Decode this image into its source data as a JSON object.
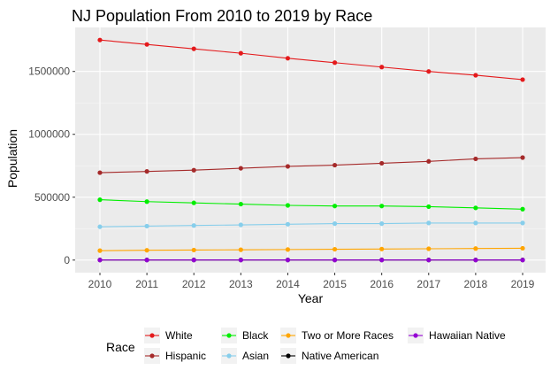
{
  "chart_data": {
    "type": "line",
    "title": "NJ Population From 2010 to 2019 by Race",
    "xlabel": "Year",
    "ylabel": "Population",
    "x": [
      2010,
      2011,
      2012,
      2013,
      2014,
      2015,
      2016,
      2017,
      2018,
      2019
    ],
    "xticks": [
      "2010",
      "2011",
      "2012",
      "2013",
      "2014",
      "2015",
      "2016",
      "2017",
      "2018",
      "2019"
    ],
    "ylim": [
      -100000,
      1850000
    ],
    "yticks": [
      0,
      500000,
      1000000,
      1500000
    ],
    "ytick_labels": [
      "0",
      "500000",
      "1000000",
      "1500000"
    ],
    "grid": true,
    "legend_position": "bottom",
    "legend_title": "Race",
    "series": [
      {
        "name": "White",
        "color": "#e41a1c",
        "values": [
          1750000,
          1715000,
          1680000,
          1645000,
          1605000,
          1570000,
          1535000,
          1500000,
          1470000,
          1435000
        ]
      },
      {
        "name": "Hispanic",
        "color": "#a52a2a",
        "values": [
          695000,
          705000,
          715000,
          730000,
          745000,
          755000,
          770000,
          785000,
          805000,
          815000
        ]
      },
      {
        "name": "Black",
        "color": "#00ee00",
        "values": [
          480000,
          465000,
          455000,
          445000,
          435000,
          430000,
          430000,
          425000,
          415000,
          405000
        ]
      },
      {
        "name": "Asian",
        "color": "#87ceeb",
        "values": [
          265000,
          270000,
          275000,
          280000,
          285000,
          290000,
          290000,
          295000,
          295000,
          295000
        ]
      },
      {
        "name": "Two or More Races",
        "color": "#ffa500",
        "values": [
          75000,
          78000,
          80000,
          82000,
          84000,
          86000,
          88000,
          90000,
          92000,
          94000
        ]
      },
      {
        "name": "Native American",
        "color": "#000000",
        "values": [
          1000,
          1000,
          1000,
          1000,
          1000,
          1000,
          1000,
          1000,
          1000,
          1000
        ]
      },
      {
        "name": "Hawaiian Native",
        "color": "#9400d3",
        "values": [
          500,
          500,
          500,
          500,
          500,
          500,
          500,
          500,
          500,
          500
        ]
      }
    ]
  }
}
